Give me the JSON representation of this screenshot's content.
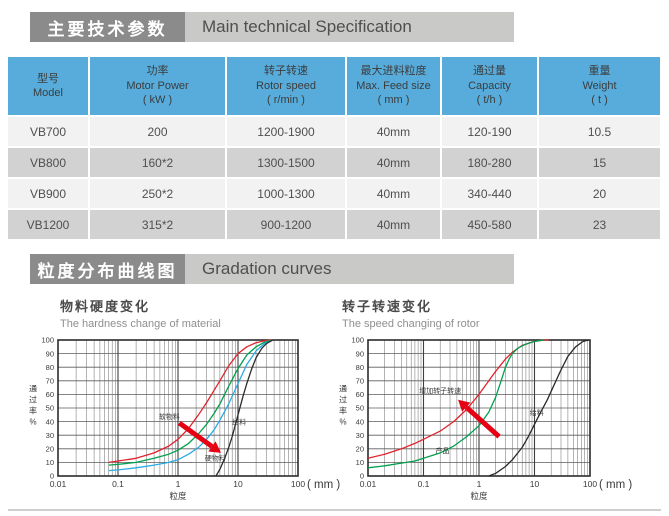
{
  "sections": [
    {
      "title_zh": "主要技术参数",
      "title_en": "Main technical Specification"
    },
    {
      "title_zh": "粒度分布曲线图",
      "title_en": "Gradation curves"
    }
  ],
  "table": {
    "columns": [
      {
        "zh": "型号",
        "en": "Model",
        "unit": ""
      },
      {
        "zh": "功率",
        "en": "Motor Power",
        "unit": "( kW )"
      },
      {
        "zh": "转子转速",
        "en": "Rotor speed",
        "unit": "( r/min )"
      },
      {
        "zh": "最大进料粒度",
        "en": "Max. Feed size",
        "unit": "( mm )"
      },
      {
        "zh": "通过量",
        "en": "Capacity",
        "unit": "( t/h )"
      },
      {
        "zh": "重量",
        "en": "Weight",
        "unit": "( t )"
      }
    ],
    "rows": [
      [
        "VB700",
        "200",
        "1200-1900",
        "40mm",
        "120-190",
        "10.5"
      ],
      [
        "VB800",
        "160*2",
        "1300-1500",
        "40mm",
        "180-280",
        "15"
      ],
      [
        "VB900",
        "250*2",
        "1000-1300",
        "40mm",
        "340-440",
        "20"
      ],
      [
        "VB1200",
        "315*2",
        "900-1200",
        "40mm",
        "450-580",
        "23"
      ]
    ]
  },
  "colors": {
    "section_dark": "#8b8b8b",
    "section_light": "#c9c9c8",
    "table_header_blue": "#57acdc",
    "row_light": "#f2f2f2",
    "row_gray": "#d2d2d2",
    "curve_red": "#e0232c",
    "curve_green": "#00a04e",
    "curve_blue": "#29abe2",
    "curve_black": "#2b2a29",
    "arrow_red": "#e60013"
  },
  "chart_data": [
    {
      "type": "line",
      "title_zh": "物料硬度变化",
      "title_en": "The hardness change of material",
      "xlabel": "粒度",
      "x_unit": "( mm )",
      "ylabel": "通过率%",
      "x_scale": "log",
      "xlim": [
        0.01,
        100
      ],
      "ylim": [
        0,
        100
      ],
      "grid": true,
      "x_ticks": [
        0.01,
        0.1,
        1,
        10,
        100
      ],
      "x_tick_labels": [
        "0.01",
        "0.1",
        "1",
        "10",
        "100"
      ],
      "y_ticks": [
        0,
        10,
        20,
        30,
        40,
        50,
        60,
        70,
        80,
        90,
        100
      ],
      "series": [
        {
          "id": "soft-material",
          "label": "软物料",
          "color": "#e0232c",
          "points": [
            [
              0.07,
              10
            ],
            [
              0.1,
              11
            ],
            [
              0.2,
              13
            ],
            [
              0.4,
              17
            ],
            [
              0.7,
              22
            ],
            [
              1,
              27
            ],
            [
              1.5,
              35
            ],
            [
              2.2,
              45
            ],
            [
              3,
              54
            ],
            [
              4,
              63
            ],
            [
              5,
              70
            ],
            [
              7,
              81
            ],
            [
              10,
              90
            ],
            [
              14,
              95
            ],
            [
              20,
              98
            ],
            [
              28,
              99.5
            ],
            [
              38,
              100
            ]
          ]
        },
        {
          "id": "medium-material",
          "label": "",
          "color": "#00a04e",
          "points": [
            [
              0.07,
              8
            ],
            [
              0.1,
              8.5
            ],
            [
              0.2,
              10
            ],
            [
              0.4,
              13
            ],
            [
              0.7,
              16
            ],
            [
              1,
              19
            ],
            [
              1.5,
              24
            ],
            [
              2.2,
              31
            ],
            [
              3,
              38
            ],
            [
              4,
              46
            ],
            [
              5,
              53
            ],
            [
              7,
              66
            ],
            [
              10,
              79
            ],
            [
              14,
              89
            ],
            [
              20,
              95
            ],
            [
              28,
              98.5
            ],
            [
              38,
              100
            ]
          ]
        },
        {
          "id": "hard-material",
          "label": "硬物料",
          "color": "#29abe2",
          "points": [
            [
              0.07,
              4
            ],
            [
              0.1,
              4.5
            ],
            [
              0.2,
              6
            ],
            [
              0.4,
              8
            ],
            [
              0.7,
              10
            ],
            [
              1,
              12
            ],
            [
              1.5,
              16
            ],
            [
              2.2,
              21
            ],
            [
              3,
              27
            ],
            [
              4,
              34
            ],
            [
              5,
              41
            ],
            [
              7,
              53
            ],
            [
              10,
              68
            ],
            [
              14,
              82
            ],
            [
              20,
              92
            ],
            [
              28,
              97.5
            ],
            [
              38,
              100
            ]
          ]
        },
        {
          "id": "feed",
          "label": "给料",
          "color": "#2b2a29",
          "points": [
            [
              4.3,
              0
            ],
            [
              5,
              5
            ],
            [
              6,
              13
            ],
            [
              7,
              21
            ],
            [
              8,
              29
            ],
            [
              10,
              45
            ],
            [
              12,
              58
            ],
            [
              14,
              68
            ],
            [
              17,
              79
            ],
            [
              20,
              87
            ],
            [
              25,
              94
            ],
            [
              30,
              97.5
            ],
            [
              38,
              100
            ]
          ]
        }
      ],
      "annotations": [
        {
          "text": "软物料",
          "x": 0.72,
          "y": 42
        },
        {
          "text": "硬物料",
          "x": 4.2,
          "y": 11.5
        },
        {
          "text": "给料",
          "x": 10.5,
          "y": 38
        }
      ],
      "arrow": {
        "from": [
          1.05,
          39
        ],
        "to": [
          5.2,
          17
        ],
        "color": "#e60013"
      }
    },
    {
      "type": "line",
      "title_zh": "转子转速变化",
      "title_en": "The speed  changing  of rotor",
      "xlabel": "粒度",
      "x_unit": "( mm )",
      "ylabel": "通过率%",
      "x_scale": "log",
      "xlim": [
        0.01,
        100
      ],
      "ylim": [
        0,
        100
      ],
      "grid": true,
      "x_ticks": [
        0.01,
        0.1,
        1,
        10,
        100
      ],
      "x_tick_labels": [
        "0.01",
        "0.1",
        "1",
        "10",
        "100"
      ],
      "y_ticks": [
        0,
        10,
        20,
        30,
        40,
        50,
        60,
        70,
        80,
        90,
        100
      ],
      "series": [
        {
          "id": "high-speed",
          "label": "",
          "color": "#e0232c",
          "points": [
            [
              0.01,
              13
            ],
            [
              0.02,
              16
            ],
            [
              0.04,
              20
            ],
            [
              0.07,
              24
            ],
            [
              0.1,
              27
            ],
            [
              0.2,
              33
            ],
            [
              0.35,
              40
            ],
            [
              0.6,
              49
            ],
            [
              1,
              60
            ],
            [
              1.5,
              70
            ],
            [
              2,
              77
            ],
            [
              3,
              86
            ],
            [
              4,
              91
            ],
            [
              6,
              96
            ],
            [
              10,
              99
            ],
            [
              15,
              100
            ],
            [
              18,
              100
            ]
          ]
        },
        {
          "id": "product",
          "label": "产品",
          "color": "#00a04e",
          "points": [
            [
              0.01,
              6
            ],
            [
              0.02,
              7.5
            ],
            [
              0.04,
              9.5
            ],
            [
              0.07,
              11
            ],
            [
              0.1,
              13
            ],
            [
              0.2,
              17
            ],
            [
              0.35,
              22
            ],
            [
              0.6,
              29
            ],
            [
              1,
              37
            ],
            [
              1.5,
              47
            ],
            [
              2,
              58
            ],
            [
              2.5,
              70
            ],
            [
              3,
              80
            ],
            [
              3.5,
              86
            ],
            [
              4,
              90
            ],
            [
              5,
              94
            ],
            [
              7,
              97
            ],
            [
              10,
              99
            ],
            [
              15,
              100
            ]
          ]
        },
        {
          "id": "feed",
          "label": "给料",
          "color": "#2b2a29",
          "points": [
            [
              1.5,
              0
            ],
            [
              2,
              2
            ],
            [
              3,
              7
            ],
            [
              4,
              12
            ],
            [
              6,
              21
            ],
            [
              8,
              30
            ],
            [
              10,
              38
            ],
            [
              13,
              47
            ],
            [
              17,
              56
            ],
            [
              22,
              66
            ],
            [
              30,
              78
            ],
            [
              40,
              88
            ],
            [
              55,
              95
            ],
            [
              75,
              99
            ],
            [
              95,
              100
            ]
          ]
        }
      ],
      "annotations": [
        {
          "text": "增加转子转速",
          "x": 0.2,
          "y": 61
        },
        {
          "text": "产品",
          "x": 0.22,
          "y": 17
        },
        {
          "text": "给料",
          "x": 11,
          "y": 45
        }
      ],
      "arrow": {
        "from": [
          2.3,
          29
        ],
        "to": [
          0.42,
          56
        ],
        "color": "#e60013"
      }
    }
  ]
}
